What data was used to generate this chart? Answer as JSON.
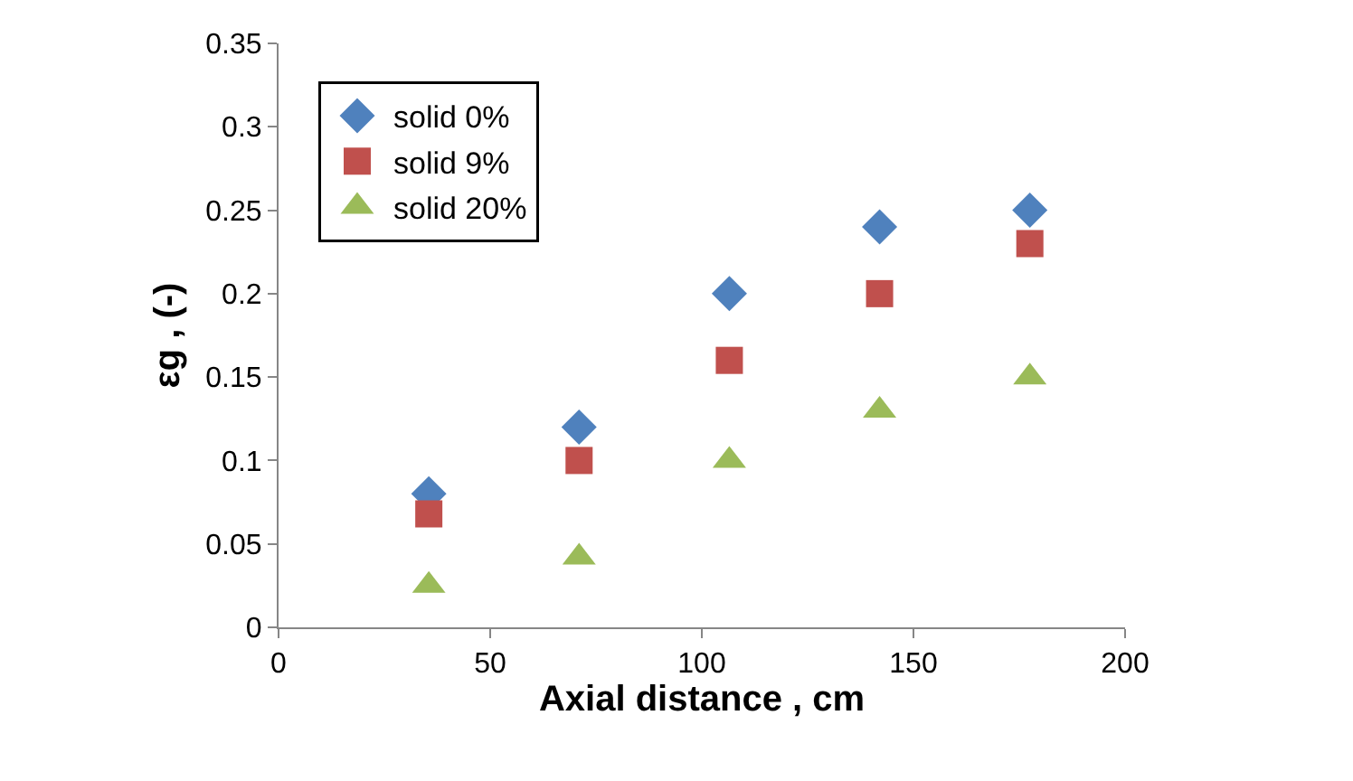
{
  "chart_data": {
    "type": "scatter",
    "xlabel": "Axial distance , cm",
    "ylabel": "εg , (-)",
    "x": [
      35.5,
      71,
      106.5,
      142,
      177.5
    ],
    "series": [
      {
        "name": "solid 0%",
        "color": "#4f81bd",
        "marker": "diamond",
        "values": [
          0.08,
          0.12,
          0.2,
          0.24,
          0.25
        ]
      },
      {
        "name": "solid 9%",
        "color": "#c0504d",
        "marker": "square",
        "values": [
          0.068,
          0.1,
          0.16,
          0.2,
          0.23
        ]
      },
      {
        "name": "solid 20%",
        "color": "#9bbb59",
        "marker": "triangle",
        "values": [
          0.025,
          0.042,
          0.1,
          0.13,
          0.15
        ]
      }
    ],
    "xlim": [
      0,
      200
    ],
    "xticks": [
      0,
      50,
      100,
      150,
      200
    ],
    "ylim": [
      0,
      0.35
    ],
    "yticks": [
      0,
      0.05,
      0.1,
      0.15,
      0.2,
      0.25,
      0.3,
      0.35
    ],
    "legend": "top left"
  }
}
